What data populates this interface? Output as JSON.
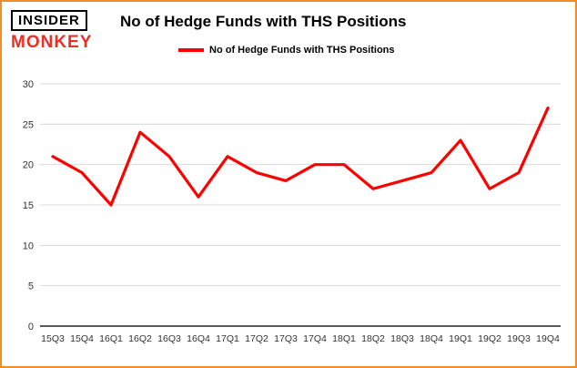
{
  "header": {
    "logo_top": "INSIDER",
    "logo_bottom": "MONKEY",
    "title": "No of Hedge Funds with THS Positions"
  },
  "legend": {
    "label": "No of Hedge Funds with THS Positions"
  },
  "colors": {
    "card_border": "#f28c28",
    "series_line": "#fe0000",
    "logo_monkey_red": "#ee2e24",
    "gridline": "#d9d9d9",
    "axis": "#222222",
    "tick_text": "#333333"
  },
  "chart_data": {
    "type": "line",
    "title": "No of Hedge Funds with THS Positions",
    "categories": [
      "15Q3",
      "15Q4",
      "16Q1",
      "16Q2",
      "16Q3",
      "16Q4",
      "17Q1",
      "17Q2",
      "17Q3",
      "17Q4",
      "18Q1",
      "18Q2",
      "18Q3",
      "18Q4",
      "19Q1",
      "19Q2",
      "19Q3",
      "19Q4"
    ],
    "series": [
      {
        "name": "No of Hedge Funds with THS Positions",
        "values": [
          21,
          19,
          15,
          24,
          21,
          16,
          21,
          19,
          18,
          20,
          20,
          17,
          18,
          19,
          23,
          17,
          19,
          27
        ]
      }
    ],
    "xlabel": "",
    "ylabel": "",
    "ylim": [
      0,
      30
    ],
    "yticks": [
      0,
      5,
      10,
      15,
      20,
      25,
      30
    ],
    "grid": true,
    "legend_position": "top-left"
  }
}
